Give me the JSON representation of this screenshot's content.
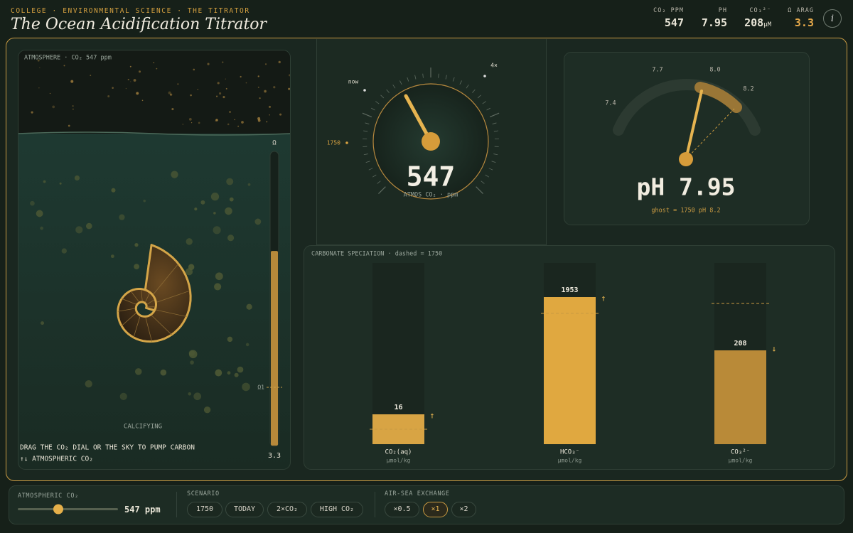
{
  "header": {
    "eyebrow": "COLLEGE · ENVIRONMENTAL SCIENCE · THE TITRATOR",
    "title": "The Ocean Acidification Titrator",
    "stats": [
      {
        "label": "CO₂ PPM",
        "value": "547"
      },
      {
        "label": "PH",
        "value": "7.95"
      },
      {
        "label": "CO₃²⁻",
        "value": "208",
        "unit": "μM"
      },
      {
        "label": "Ω ARAG",
        "value": "3.3"
      }
    ],
    "info": "i"
  },
  "ocean": {
    "label": "ATMOSPHERE · CO₂ 547 ppm",
    "gauge_top": "Ω",
    "gauge_marker": "Ω1",
    "gauge_value": "3.3",
    "status": "CALCIFYING",
    "instructions": [
      "DRAG THE CO₂ DIAL OR THE SKY TO PUMP CARBON",
      "↑↓ ATMOSPHERIC CO₂"
    ]
  },
  "dial": {
    "now": "now",
    "max": "4×",
    "preindustrial": "1750",
    "value": "547",
    "caption": "ATMOS CO₂ · ppm"
  },
  "ph_gauge": {
    "ticks": [
      "7.4",
      "7.7",
      "8.0",
      "8.2"
    ],
    "value": "pH 7.95",
    "ghost": "ghost = 1750 pH 8.2"
  },
  "speciation": {
    "title": "CARBONATE SPECIATION · dashed = 1750",
    "bars": [
      {
        "name": "CO₂(aq)",
        "value": "16",
        "unit": "μmol/kg",
        "trend": "↑"
      },
      {
        "name": "HCO₃⁻",
        "value": "1953",
        "unit": "μmol/kg",
        "trend": "↑"
      },
      {
        "name": "CO₃²⁻",
        "value": "208",
        "unit": "μmol/kg",
        "trend": "↓"
      }
    ]
  },
  "controls": {
    "co2_label": "ATMOSPHERIC CO₂",
    "co2_value": "547 ppm",
    "scenario_label": "SCENARIO",
    "scenarios": [
      "1750",
      "TODAY",
      "2×CO₂",
      "HIGH CO₂"
    ],
    "exchange_label": "AIR-SEA EXCHANGE",
    "exchange": [
      "×0.5",
      "×1",
      "×2"
    ]
  }
}
